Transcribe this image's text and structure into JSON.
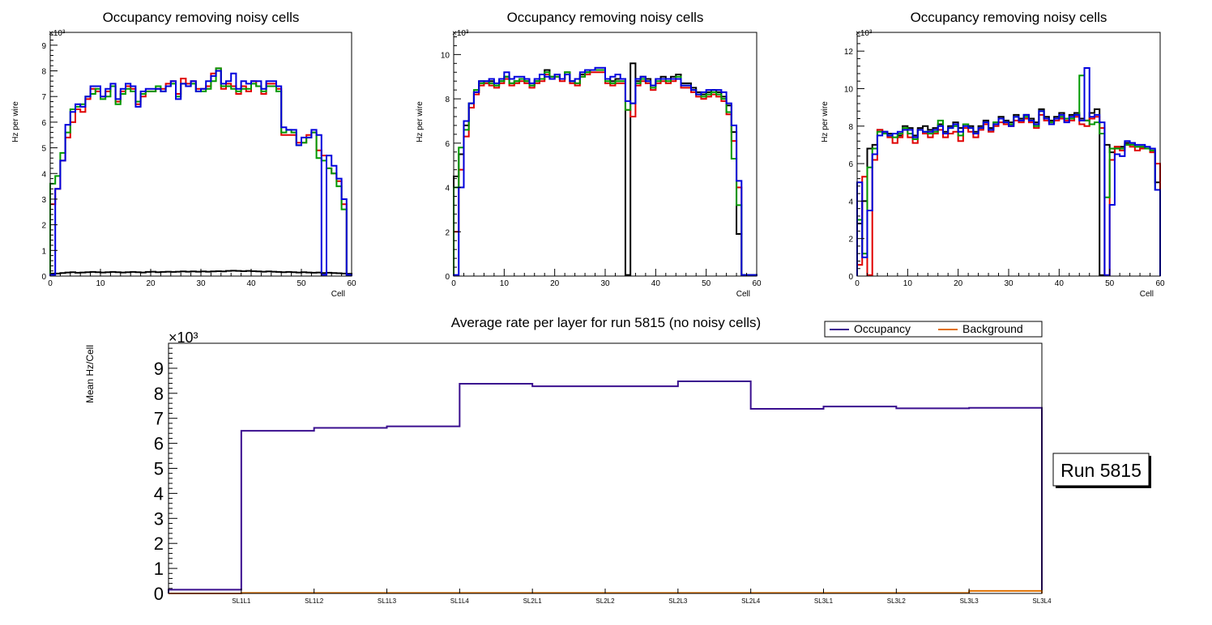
{
  "colors": {
    "black": "#000000",
    "red": "#e00000",
    "green": "#009900",
    "blue": "#0000dd",
    "occupancy": "#3a0f8f",
    "background": "#e07000"
  },
  "chart_data": [
    {
      "type": "histogram",
      "title": "Occupancy removing noisy cells",
      "xlabel": "Cell",
      "ylabel": "Hz per wire",
      "exponent": "×10³",
      "xlim": [
        0,
        60
      ],
      "ylim": [
        0,
        9.5
      ],
      "xticks": [
        0,
        10,
        20,
        30,
        40,
        50,
        60
      ],
      "yticks": [
        0,
        1,
        2,
        3,
        4,
        5,
        6,
        7,
        8,
        9
      ],
      "series": [
        {
          "name": "black",
          "color": "#000000",
          "values": [
            0.1,
            0.1,
            0.12,
            0.14,
            0.15,
            0.13,
            0.14,
            0.15,
            0.16,
            0.15,
            0.14,
            0.15,
            0.16,
            0.15,
            0.14,
            0.15,
            0.16,
            0.15,
            0.14,
            0.16,
            0.17,
            0.15,
            0.16,
            0.17,
            0.16,
            0.17,
            0.18,
            0.17,
            0.18,
            0.17,
            0.18,
            0.17,
            0.18,
            0.19,
            0.18,
            0.2,
            0.21,
            0.2,
            0.19,
            0.2,
            0.19,
            0.18,
            0.17,
            0.18,
            0.17,
            0.16,
            0.15,
            0.16,
            0.15,
            0.14,
            0.15,
            0.14,
            0.13,
            0.14,
            0.12,
            0.13,
            0.12,
            0.11,
            0.1,
            0.09
          ]
        },
        {
          "name": "red",
          "color": "#e00000",
          "values": [
            2.8,
            3.4,
            4.5,
            5.4,
            6.0,
            6.5,
            6.4,
            6.9,
            7.3,
            7.2,
            7.0,
            7.2,
            7.4,
            6.8,
            7.2,
            7.4,
            7.3,
            6.7,
            7.0,
            7.2,
            7.2,
            7.3,
            7.3,
            7.5,
            7.6,
            7.1,
            7.7,
            7.5,
            7.6,
            7.3,
            7.3,
            7.4,
            7.9,
            8.1,
            7.3,
            7.5,
            7.4,
            7.1,
            7.4,
            7.2,
            7.6,
            7.4,
            7.1,
            7.5,
            7.5,
            7.3,
            5.5,
            5.5,
            5.5,
            5.2,
            5.2,
            5.5,
            5.6,
            4.9,
            4.7,
            4.2,
            4.0,
            3.7,
            2.8,
            0.05
          ]
        },
        {
          "name": "green",
          "color": "#009900",
          "values": [
            3.6,
            3.9,
            4.8,
            5.6,
            6.5,
            6.6,
            6.7,
            7.0,
            7.1,
            7.3,
            6.9,
            7.0,
            7.4,
            6.7,
            7.1,
            7.3,
            7.2,
            6.8,
            7.1,
            7.2,
            7.2,
            7.4,
            7.2,
            7.4,
            7.5,
            7.0,
            7.5,
            7.4,
            7.5,
            7.2,
            7.2,
            7.3,
            7.6,
            8.1,
            7.4,
            7.4,
            7.3,
            7.2,
            7.3,
            7.3,
            7.5,
            7.4,
            7.2,
            7.4,
            7.4,
            7.2,
            5.6,
            5.7,
            5.6,
            5.1,
            5.2,
            5.4,
            5.6,
            4.6,
            4.5,
            4.2,
            4.0,
            3.5,
            2.6,
            0.05
          ]
        },
        {
          "name": "blue",
          "color": "#0000dd",
          "values": [
            0.05,
            3.4,
            4.5,
            5.9,
            6.4,
            6.7,
            6.6,
            7.0,
            7.4,
            7.4,
            7.0,
            7.3,
            7.5,
            6.9,
            7.3,
            7.5,
            7.4,
            6.6,
            7.2,
            7.3,
            7.3,
            7.3,
            7.2,
            7.4,
            7.6,
            6.9,
            7.5,
            7.4,
            7.6,
            7.2,
            7.3,
            7.6,
            7.8,
            8.0,
            7.5,
            7.6,
            7.9,
            7.3,
            7.6,
            7.5,
            7.6,
            7.6,
            7.3,
            7.6,
            7.6,
            7.4,
            5.8,
            5.7,
            5.7,
            5.1,
            5.4,
            5.4,
            5.7,
            5.5,
            0.05,
            4.7,
            4.3,
            3.8,
            3.0,
            0.05
          ]
        }
      ]
    },
    {
      "type": "histogram",
      "title": "Occupancy removing noisy cells",
      "xlabel": "Cell",
      "ylabel": "Hz per wire",
      "exponent": "×10³",
      "xlim": [
        0,
        60
      ],
      "ylim": [
        0,
        11
      ],
      "xticks": [
        0,
        10,
        20,
        30,
        40,
        50,
        60
      ],
      "yticks": [
        0,
        2,
        4,
        6,
        8,
        10
      ],
      "series": [
        {
          "name": "black",
          "color": "#000000",
          "values": [
            4.5,
            5.5,
            6.8,
            7.8,
            8.3,
            8.8,
            8.7,
            8.8,
            8.6,
            8.8,
            9.0,
            8.7,
            8.8,
            8.9,
            8.8,
            8.6,
            8.8,
            8.9,
            9.3,
            9.0,
            9.1,
            8.9,
            9.2,
            8.8,
            8.7,
            9.1,
            9.2,
            9.3,
            9.3,
            9.3,
            8.9,
            8.8,
            8.9,
            8.9,
            0.05,
            9.6,
            8.8,
            9.0,
            8.9,
            8.6,
            8.9,
            9.0,
            8.9,
            9.0,
            9.1,
            8.7,
            8.7,
            8.5,
            8.3,
            8.2,
            8.3,
            8.4,
            8.3,
            8.1,
            7.7,
            6.5,
            1.9,
            0.05,
            0.05,
            0.05
          ]
        },
        {
          "name": "red",
          "color": "#e00000",
          "values": [
            2.0,
            4.8,
            6.3,
            7.6,
            8.2,
            8.6,
            8.7,
            8.6,
            8.5,
            8.7,
            8.9,
            8.6,
            8.7,
            8.8,
            8.7,
            8.5,
            8.7,
            8.8,
            9.1,
            8.9,
            9.0,
            8.8,
            9.1,
            8.7,
            8.6,
            9.0,
            9.1,
            9.2,
            9.2,
            9.2,
            8.7,
            8.6,
            8.7,
            8.7,
            7.5,
            7.2,
            8.6,
            8.8,
            8.7,
            8.4,
            8.7,
            8.8,
            8.7,
            8.8,
            8.9,
            8.5,
            8.5,
            8.3,
            8.1,
            8.0,
            8.1,
            8.2,
            8.1,
            7.9,
            7.3,
            6.1,
            4.0,
            0.05,
            0.05,
            0.05
          ]
        },
        {
          "name": "green",
          "color": "#009900",
          "values": [
            4.0,
            5.8,
            6.6,
            7.8,
            8.4,
            8.7,
            8.8,
            8.7,
            8.6,
            8.8,
            9.0,
            8.7,
            8.8,
            8.9,
            8.8,
            8.6,
            8.8,
            8.9,
            9.2,
            9.0,
            9.0,
            8.9,
            9.2,
            8.8,
            8.7,
            9.0,
            9.2,
            9.3,
            9.3,
            9.3,
            8.8,
            8.7,
            8.8,
            8.8,
            7.5,
            7.8,
            8.7,
            8.9,
            8.8,
            8.5,
            8.8,
            8.9,
            8.8,
            8.9,
            9.0,
            8.6,
            8.6,
            8.4,
            8.2,
            8.1,
            8.2,
            8.3,
            8.2,
            8.0,
            7.4,
            5.3,
            3.2,
            0.05,
            0.05,
            0.05
          ]
        },
        {
          "name": "blue",
          "color": "#0000dd",
          "values": [
            0.05,
            4.0,
            7.0,
            7.8,
            8.3,
            8.8,
            8.8,
            8.9,
            8.7,
            8.9,
            9.2,
            8.9,
            9.0,
            9.0,
            8.9,
            8.7,
            8.9,
            9.1,
            9.0,
            8.9,
            9.1,
            8.9,
            9.1,
            8.8,
            8.9,
            9.2,
            9.3,
            9.3,
            9.4,
            9.4,
            8.9,
            9.0,
            9.1,
            8.9,
            7.9,
            7.8,
            8.9,
            9.0,
            8.8,
            8.6,
            8.9,
            8.9,
            8.9,
            8.9,
            8.9,
            8.6,
            8.6,
            8.4,
            8.2,
            8.3,
            8.4,
            8.4,
            8.4,
            8.3,
            7.8,
            6.8,
            4.3,
            0.05,
            0.05,
            0.05
          ]
        }
      ]
    },
    {
      "type": "histogram",
      "title": "Occupancy removing noisy cells",
      "xlabel": "Cell",
      "ylabel": "Hz per wire",
      "exponent": "×10³",
      "xlim": [
        0,
        60
      ],
      "ylim": [
        0,
        13
      ],
      "xticks": [
        0,
        10,
        20,
        30,
        40,
        50,
        60
      ],
      "yticks": [
        0,
        2,
        4,
        6,
        8,
        10,
        12
      ],
      "series": [
        {
          "name": "black",
          "color": "#000000",
          "values": [
            2.8,
            4.0,
            6.8,
            7.0,
            7.8,
            7.7,
            7.6,
            7.6,
            7.5,
            8.0,
            7.9,
            7.5,
            7.9,
            8.0,
            7.8,
            7.9,
            8.1,
            7.7,
            8.0,
            8.2,
            7.9,
            8.1,
            8.0,
            7.7,
            8.0,
            8.3,
            7.9,
            8.2,
            8.5,
            8.3,
            8.2,
            8.6,
            8.4,
            8.6,
            8.4,
            8.2,
            8.9,
            8.5,
            8.3,
            8.5,
            8.7,
            8.4,
            8.6,
            8.7,
            8.4,
            8.3,
            8.7,
            8.9,
            0.05,
            7.0,
            6.6,
            6.9,
            6.9,
            7.1,
            7.1,
            6.9,
            6.9,
            6.8,
            6.7,
            5.0
          ]
        },
        {
          "name": "red",
          "color": "#e00000",
          "values": [
            0.6,
            5.3,
            0.05,
            6.2,
            7.8,
            7.6,
            7.4,
            7.1,
            7.4,
            7.8,
            7.4,
            7.1,
            7.8,
            7.6,
            7.4,
            7.6,
            7.8,
            7.4,
            7.6,
            7.7,
            7.2,
            7.9,
            7.7,
            7.4,
            7.8,
            8.1,
            7.7,
            8.0,
            8.2,
            8.1,
            8.0,
            8.3,
            8.2,
            8.4,
            8.2,
            7.9,
            8.6,
            8.3,
            8.2,
            8.3,
            8.4,
            8.3,
            8.3,
            8.5,
            8.1,
            8.0,
            8.4,
            8.5,
            7.9,
            0.05,
            6.2,
            6.9,
            6.7,
            7.0,
            6.9,
            6.7,
            6.8,
            6.8,
            6.6,
            6.0
          ]
        },
        {
          "name": "green",
          "color": "#009900",
          "values": [
            3.0,
            1.2,
            5.8,
            6.8,
            7.7,
            7.6,
            7.5,
            7.4,
            7.6,
            7.9,
            7.6,
            7.3,
            7.8,
            7.7,
            7.6,
            7.7,
            8.3,
            7.6,
            7.9,
            8.0,
            7.5,
            8.1,
            7.9,
            7.6,
            7.9,
            8.2,
            7.8,
            8.2,
            8.4,
            8.2,
            8.1,
            8.5,
            8.3,
            8.5,
            8.3,
            8.0,
            8.8,
            8.4,
            8.2,
            8.4,
            8.5,
            8.4,
            8.4,
            8.6,
            10.7,
            8.3,
            8.1,
            8.2,
            7.6,
            4.2,
            6.8,
            6.8,
            6.8,
            7.0,
            7.0,
            6.9,
            6.9,
            6.8,
            6.7,
            4.6
          ]
        },
        {
          "name": "blue",
          "color": "#0000dd",
          "values": [
            5.0,
            1.0,
            3.5,
            6.5,
            7.5,
            7.7,
            7.5,
            7.6,
            7.7,
            7.8,
            7.8,
            7.4,
            7.8,
            7.7,
            7.7,
            7.8,
            8.0,
            7.6,
            7.9,
            8.1,
            7.7,
            8.0,
            7.9,
            7.6,
            7.9,
            8.2,
            7.8,
            8.1,
            8.4,
            8.2,
            8.0,
            8.5,
            8.3,
            8.6,
            8.3,
            8.1,
            8.8,
            8.4,
            8.1,
            8.4,
            8.6,
            8.2,
            8.5,
            8.6,
            8.3,
            11.1,
            8.5,
            8.6,
            8.2,
            0.05,
            3.8,
            6.5,
            6.4,
            7.2,
            7.1,
            7.0,
            7.0,
            6.9,
            6.8,
            4.6
          ]
        }
      ]
    },
    {
      "type": "histogram",
      "title": "Average rate per layer for run 5815 (no noisy cells)",
      "xlabel": "",
      "ylabel": "Mean Hz/Cell",
      "exponent": "×10³",
      "ylim": [
        0,
        10
      ],
      "yticks": [
        0,
        1,
        2,
        3,
        4,
        5,
        6,
        7,
        8,
        9
      ],
      "categories": [
        "",
        "SL1L1",
        "SL1L2",
        "SL1L3",
        "SL1L4",
        "SL2L1",
        "SL2L2",
        "SL2L3",
        "SL2L4",
        "SL3L1",
        "SL3L2",
        "SL3L3",
        "SL3L4"
      ],
      "series": [
        {
          "name": "Occupancy",
          "color": "#3a0f8f",
          "values": [
            0.15,
            6.5,
            6.62,
            6.68,
            8.38,
            8.28,
            8.28,
            8.48,
            7.38,
            7.47,
            7.4,
            7.42
          ]
        },
        {
          "name": "Background",
          "color": "#e07000",
          "values": [
            0.0,
            0.02,
            0.02,
            0.02,
            0.02,
            0.02,
            0.02,
            0.02,
            0.02,
            0.02,
            0.02,
            0.1
          ]
        }
      ],
      "legend": [
        "Occupancy",
        "Background"
      ],
      "annotation": "Run 5815"
    }
  ]
}
